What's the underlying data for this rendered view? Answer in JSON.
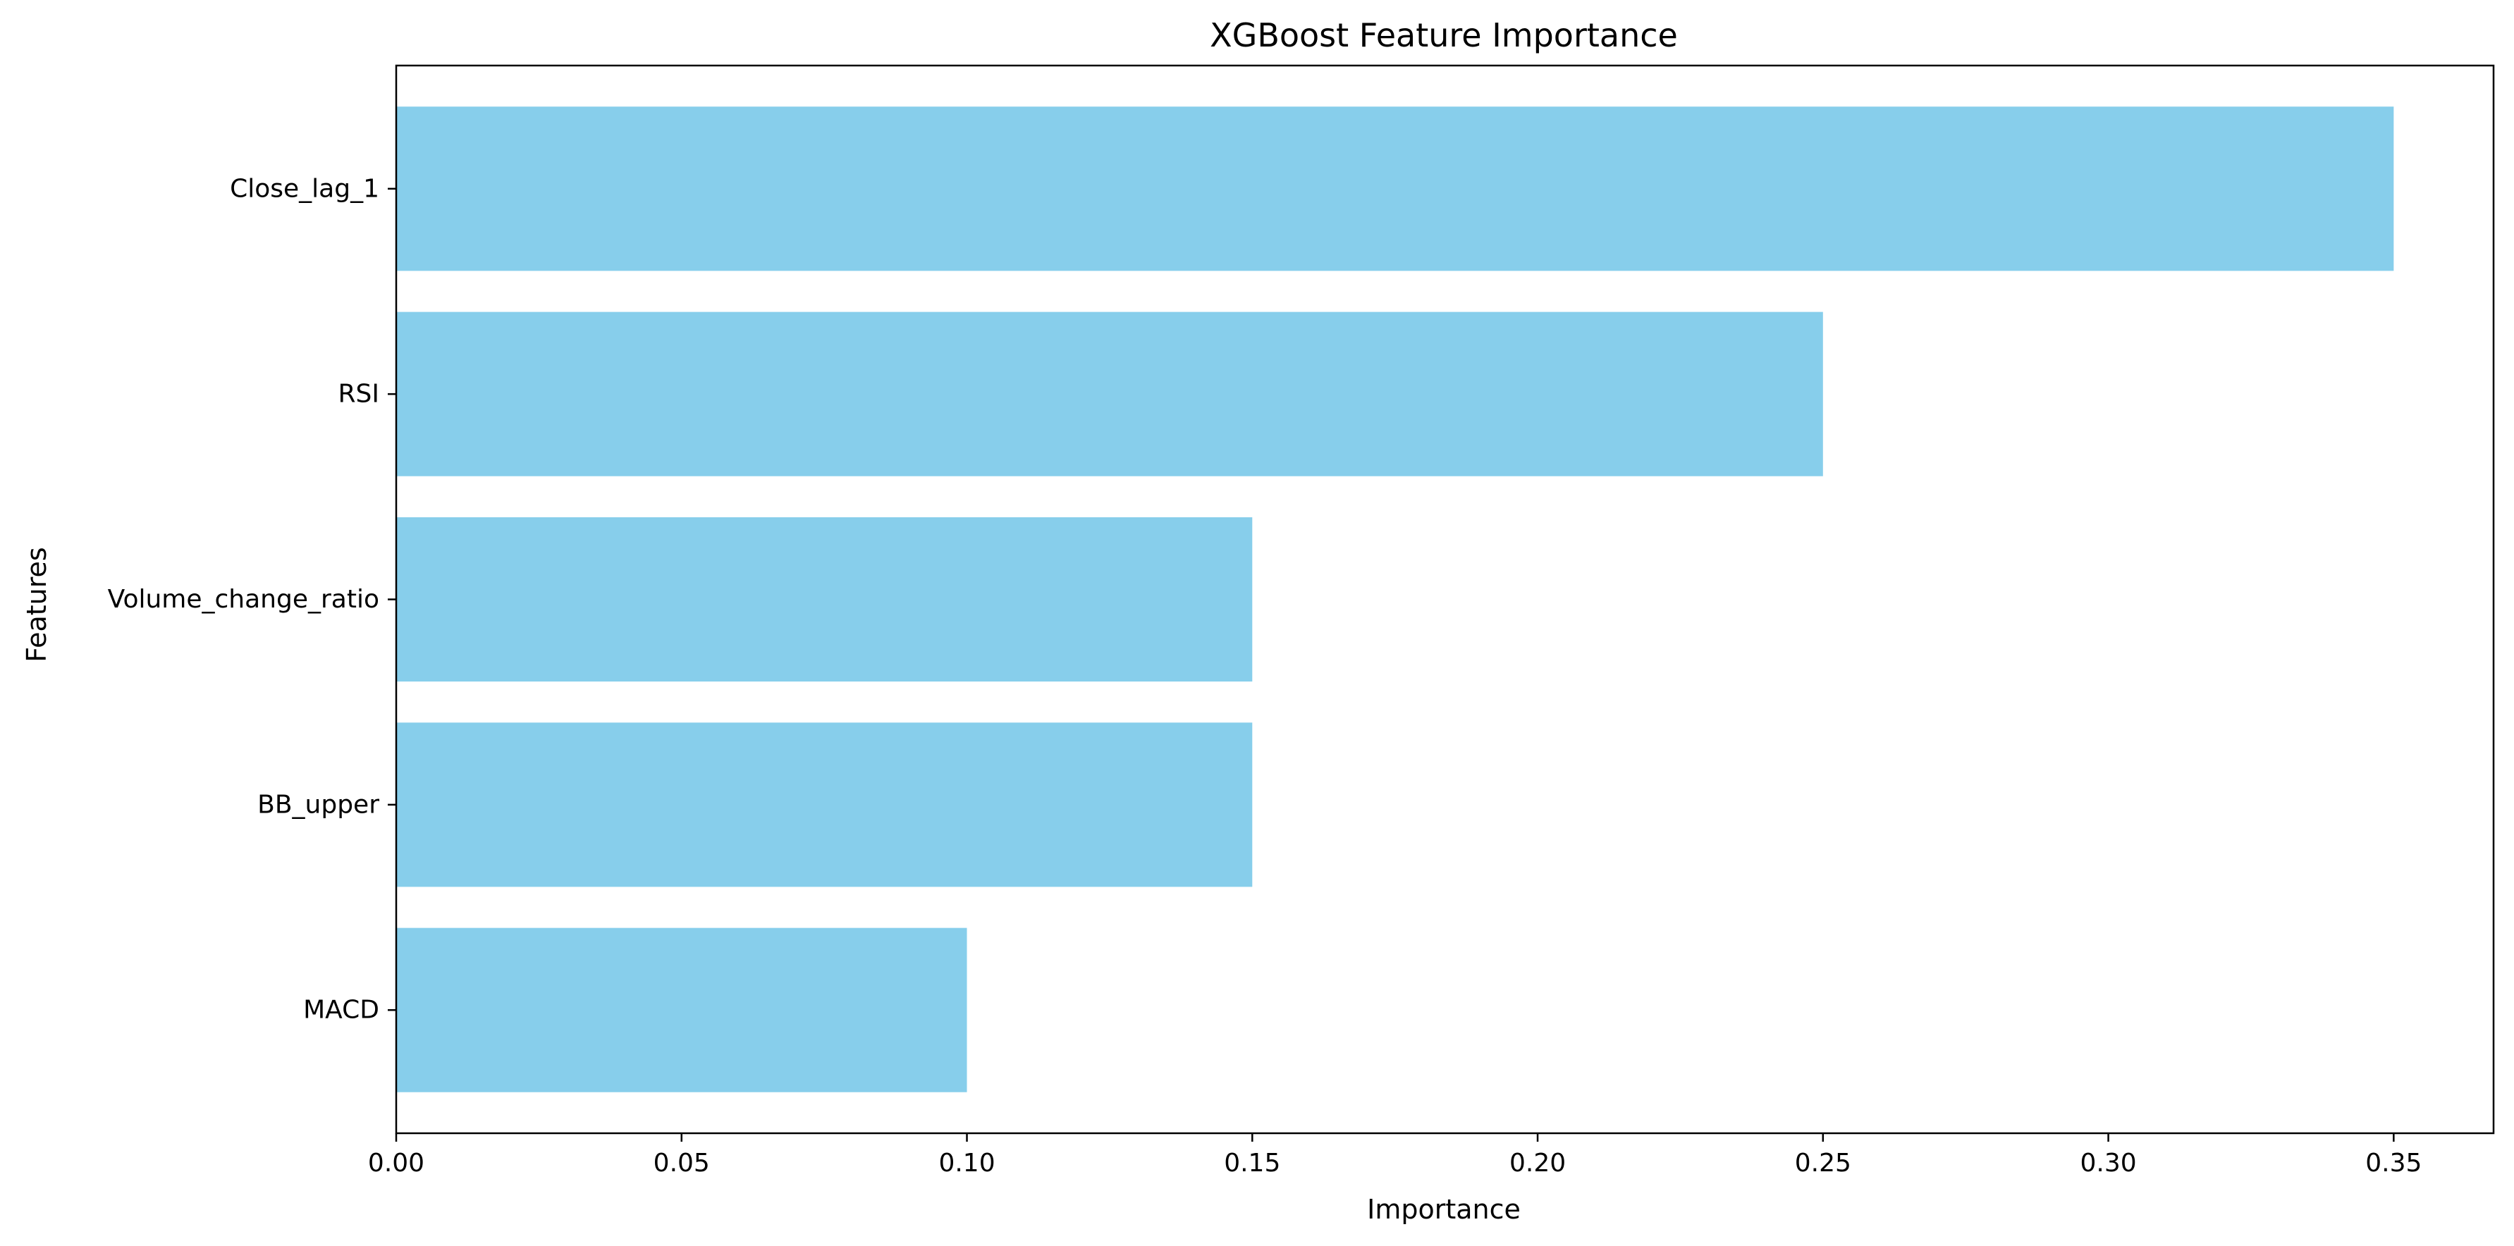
{
  "chart_data": {
    "type": "bar",
    "orientation": "horizontal",
    "title": "XGBoost Feature Importance",
    "xlabel": "Importance",
    "ylabel": "Features",
    "categories": [
      "Close_lag_1",
      "RSI",
      "Volume_change_ratio",
      "BB_upper",
      "MACD"
    ],
    "values": [
      0.35,
      0.25,
      0.15,
      0.15,
      0.1
    ],
    "xlim": [
      0,
      0.3675
    ],
    "xticks": [
      0.0,
      0.05,
      0.1,
      0.15,
      0.2,
      0.25,
      0.3,
      0.35
    ],
    "xtick_labels": [
      "0.00",
      "0.05",
      "0.10",
      "0.15",
      "0.20",
      "0.25",
      "0.30",
      "0.35"
    ],
    "bar_color": "#87CEEB",
    "grid": false,
    "legend": "none"
  }
}
